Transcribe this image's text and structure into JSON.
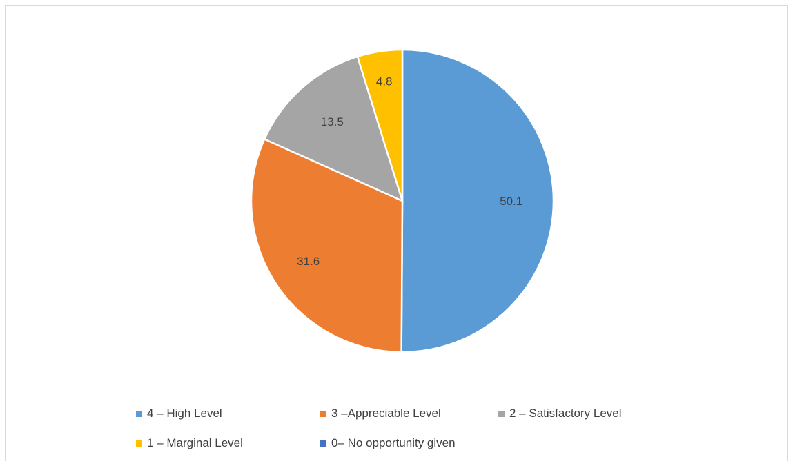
{
  "chart_data": {
    "type": "pie",
    "categories": [
      "4 – High Level",
      "3 –Appreciable Level",
      "2 – Satisfactory Level",
      "1 – Marginal Level",
      "0– No opportunity given"
    ],
    "values": [
      50.1,
      31.6,
      13.5,
      4.8,
      0
    ],
    "data_labels": [
      "50.1",
      "31.6",
      "13.5",
      "4.8",
      ""
    ],
    "colors": [
      "#5b9bd5",
      "#ed7d31",
      "#a5a5a5",
      "#ffc000",
      "#4472c4"
    ],
    "start_angle": "12 o'clock",
    "direction": "clockwise",
    "legend": "bottom",
    "title": ""
  }
}
